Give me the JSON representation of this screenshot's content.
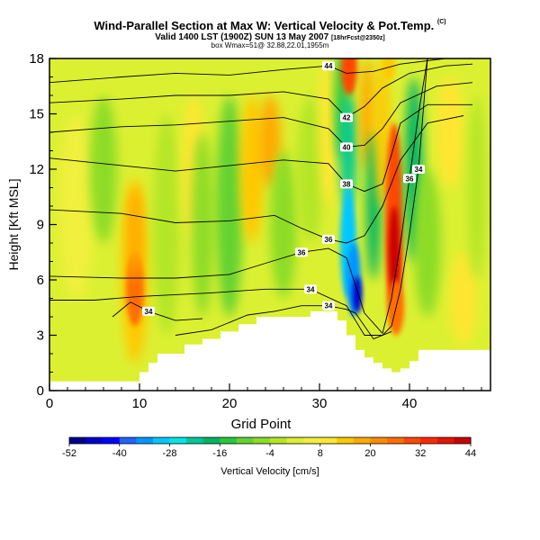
{
  "header": {
    "title": "Wind-Parallel Section at Max W: Vertical Velocity & Pot.Temp.",
    "title_unit": "(C)",
    "subtitle": "Valid 1400 LST (1900Z) SUN 13 May 2007",
    "subtitle_note": "[18hrFcst@2350z]",
    "box_info": "box Wmax=51@ 32.88,22.01,1955m"
  },
  "chart_data": {
    "type": "heatmap",
    "xlabel": "Grid Point",
    "ylabel": "Height [Kft MSL]",
    "xlim": [
      0,
      49
    ],
    "ylim": [
      0,
      18
    ],
    "x_ticks": [
      "0",
      "10",
      "20",
      "30",
      "40"
    ],
    "y_ticks": [
      "0",
      "3",
      "6",
      "9",
      "12",
      "15",
      "18"
    ],
    "colorbar": {
      "label": "Vertical Velocity [cm/s]",
      "tick_labels": [
        "-52",
        "-40",
        "-28",
        "-16",
        "-4",
        "8",
        "20",
        "32",
        "44"
      ],
      "tick_values": [
        -52,
        -40,
        -28,
        -16,
        -4,
        8,
        20,
        32,
        44
      ],
      "colors": [
        "#00008b",
        "#0000cd",
        "#0000ff",
        "#1e64ff",
        "#0096ff",
        "#00c8ff",
        "#00e6e6",
        "#00c896",
        "#00b464",
        "#28c83c",
        "#64d232",
        "#8cdc28",
        "#b4e628",
        "#dcf032",
        "#f0f03c",
        "#ffe632",
        "#ffc800",
        "#ffaa00",
        "#ff8c00",
        "#ff6e00",
        "#ff4600",
        "#ff2800",
        "#e61400",
        "#c80000"
      ]
    },
    "contour_variable": "Potential Temperature (C)",
    "contours": [
      {
        "value": 34,
        "label": "34",
        "points": [
          [
            0,
            4.9
          ],
          [
            5,
            4.9
          ],
          [
            10,
            5.1
          ],
          [
            18,
            5.3
          ],
          [
            24,
            5.5
          ],
          [
            29,
            5.5
          ],
          [
            33,
            4.6
          ],
          [
            35,
            3.0
          ],
          [
            37,
            3.0
          ],
          [
            38,
            3.5
          ]
        ]
      },
      {
        "value": 34,
        "label": "34",
        "points": [
          [
            38,
            3.5
          ],
          [
            39,
            5.5
          ],
          [
            40,
            8.5
          ],
          [
            41,
            12
          ],
          [
            41.5,
            15
          ],
          [
            42,
            18
          ]
        ]
      },
      {
        "value": 34,
        "label": "34",
        "points": [
          [
            7,
            4.0
          ],
          [
            9,
            4.8
          ],
          [
            11,
            4.3
          ],
          [
            14,
            3.8
          ],
          [
            17,
            3.9
          ]
        ]
      },
      {
        "value": 34,
        "label": "34",
        "points": [
          [
            14,
            3.0
          ],
          [
            18,
            3.3
          ],
          [
            22,
            4.1
          ],
          [
            25,
            4.3
          ],
          [
            28,
            4.6
          ],
          [
            31,
            4.6
          ],
          [
            33,
            4.4
          ],
          [
            34,
            4.2
          ],
          [
            36,
            2.8
          ],
          [
            38,
            3.2
          ]
        ]
      },
      {
        "value": 36,
        "label": "36",
        "points": [
          [
            0,
            6.2
          ],
          [
            8,
            6.1
          ],
          [
            14,
            6.1
          ],
          [
            20,
            6.3
          ],
          [
            24,
            6.9
          ],
          [
            28,
            7.5
          ],
          [
            31,
            7.7
          ],
          [
            33,
            7.2
          ],
          [
            35,
            4.2
          ],
          [
            37,
            3.1
          ]
        ]
      },
      {
        "value": 36,
        "label": "36",
        "points": [
          [
            37,
            3.1
          ],
          [
            38,
            5.0
          ],
          [
            39,
            8.0
          ],
          [
            40,
            11.5
          ],
          [
            41,
            15
          ],
          [
            42,
            18
          ]
        ]
      },
      {
        "value": 36,
        "label": "36",
        "points": [
          [
            0,
            9.8
          ],
          [
            8,
            9.6
          ],
          [
            14,
            9.1
          ],
          [
            20,
            9.2
          ],
          [
            25,
            9.5
          ],
          [
            28,
            8.8
          ],
          [
            31,
            8.2
          ],
          [
            33,
            8.0
          ],
          [
            35,
            8.4
          ],
          [
            37,
            10.0
          ],
          [
            39,
            12.5
          ],
          [
            42,
            14.5
          ],
          [
            46,
            14.9
          ]
        ]
      },
      {
        "value": 38,
        "label": "38",
        "points": [
          [
            0,
            12.6
          ],
          [
            8,
            12.2
          ],
          [
            14,
            11.9
          ],
          [
            20,
            12.2
          ],
          [
            26,
            12.5
          ],
          [
            31,
            12.3
          ],
          [
            33,
            11.2
          ],
          [
            35,
            10.8
          ],
          [
            37,
            11.2
          ],
          [
            38,
            12.8
          ],
          [
            39,
            14.5
          ],
          [
            42,
            15.5
          ],
          [
            47,
            15.5
          ]
        ]
      },
      {
        "value": 40,
        "label": "40",
        "points": [
          [
            0,
            14.0
          ],
          [
            8,
            14.3
          ],
          [
            14,
            14.4
          ],
          [
            20,
            14.6
          ],
          [
            26,
            14.8
          ],
          [
            31,
            14.2
          ],
          [
            33,
            13.2
          ],
          [
            35,
            13.3
          ],
          [
            37,
            14.2
          ],
          [
            39,
            15.6
          ],
          [
            43,
            16.5
          ],
          [
            47,
            16.7
          ]
        ]
      },
      {
        "value": 42,
        "label": "42",
        "points": [
          [
            0,
            15.6
          ],
          [
            8,
            15.8
          ],
          [
            14,
            16.0
          ],
          [
            20,
            16.0
          ],
          [
            26,
            16.2
          ],
          [
            31,
            15.8
          ],
          [
            33,
            14.8
          ],
          [
            35,
            15.4
          ],
          [
            37,
            16.4
          ],
          [
            40,
            17.2
          ],
          [
            44,
            17.6
          ],
          [
            47,
            17.7
          ]
        ]
      },
      {
        "value": 44,
        "label": "44",
        "points": [
          [
            0,
            16.7
          ],
          [
            8,
            17.0
          ],
          [
            14,
            17.2
          ],
          [
            20,
            17.1
          ],
          [
            26,
            17.4
          ],
          [
            31,
            17.6
          ],
          [
            33,
            17.2
          ],
          [
            36,
            17.3
          ],
          [
            39,
            17.7
          ],
          [
            44,
            18.0
          ]
        ]
      }
    ]
  },
  "footer": {
    "copyright": ""
  }
}
